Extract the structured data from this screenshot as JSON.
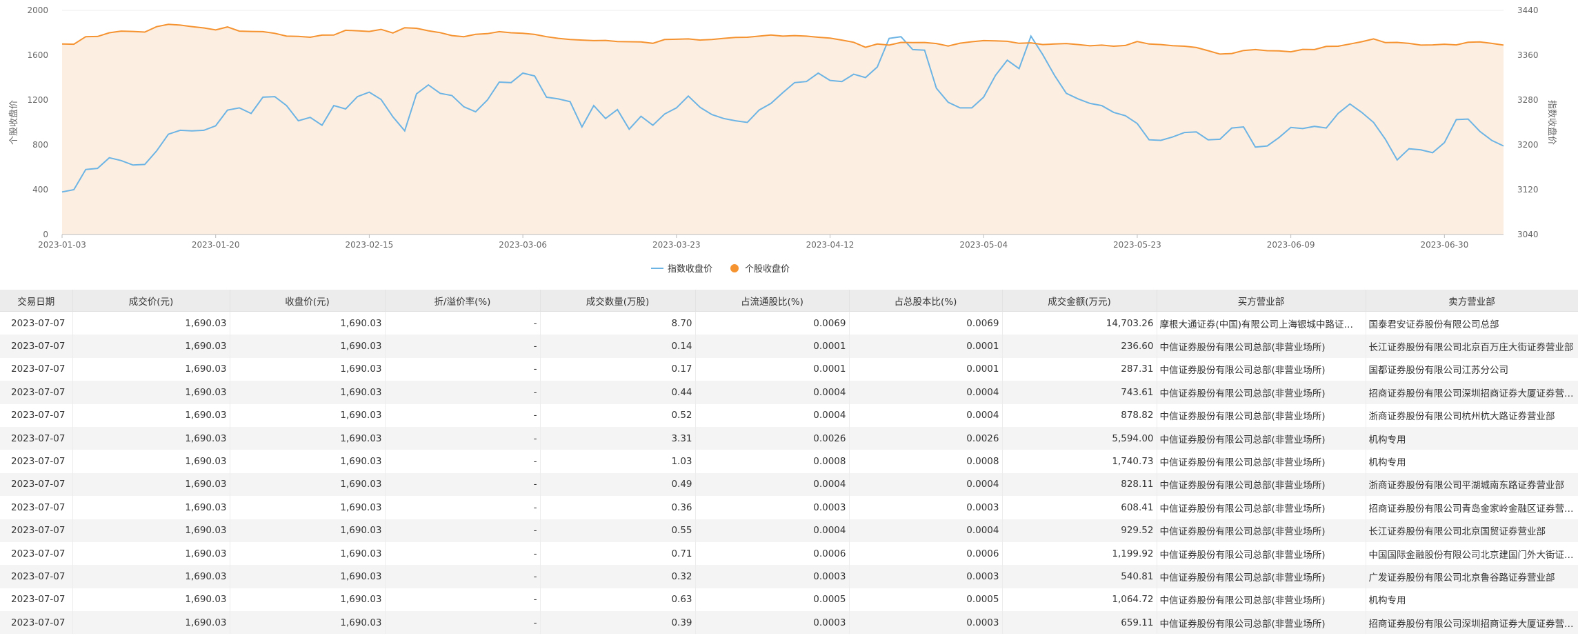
{
  "chart_data": {
    "type": "line",
    "x": [
      "2023-01-03",
      "2023-01-04",
      "2023-01-05",
      "2023-01-06",
      "2023-01-09",
      "2023-01-10",
      "2023-01-11",
      "2023-01-12",
      "2023-01-13",
      "2023-01-16",
      "2023-01-17",
      "2023-01-18",
      "2023-01-19",
      "2023-01-20",
      "2023-01-30",
      "2023-01-31",
      "2023-02-01",
      "2023-02-02",
      "2023-02-03",
      "2023-02-06",
      "2023-02-07",
      "2023-02-08",
      "2023-02-09",
      "2023-02-10",
      "2023-02-13",
      "2023-02-14",
      "2023-02-15",
      "2023-02-16",
      "2023-02-17",
      "2023-02-20",
      "2023-02-21",
      "2023-02-22",
      "2023-02-23",
      "2023-02-24",
      "2023-02-27",
      "2023-02-28",
      "2023-03-01",
      "2023-03-02",
      "2023-03-03",
      "2023-03-06",
      "2023-03-07",
      "2023-03-08",
      "2023-03-09",
      "2023-03-10",
      "2023-03-13",
      "2023-03-14",
      "2023-03-15",
      "2023-03-16",
      "2023-03-17",
      "2023-03-20",
      "2023-03-21",
      "2023-03-22",
      "2023-03-23",
      "2023-03-24",
      "2023-03-27",
      "2023-03-28",
      "2023-03-29",
      "2023-03-30",
      "2023-03-31",
      "2023-04-03",
      "2023-04-04",
      "2023-04-06",
      "2023-04-07",
      "2023-04-10",
      "2023-04-11",
      "2023-04-12",
      "2023-04-13",
      "2023-04-14",
      "2023-04-17",
      "2023-04-18",
      "2023-04-19",
      "2023-04-20",
      "2023-04-21",
      "2023-04-24",
      "2023-04-25",
      "2023-04-26",
      "2023-04-27",
      "2023-04-28",
      "2023-05-04",
      "2023-05-05",
      "2023-05-08",
      "2023-05-09",
      "2023-05-10",
      "2023-05-11",
      "2023-05-12",
      "2023-05-15",
      "2023-05-16",
      "2023-05-17",
      "2023-05-18",
      "2023-05-19",
      "2023-05-22",
      "2023-05-23",
      "2023-05-24",
      "2023-05-25",
      "2023-05-26",
      "2023-05-29",
      "2023-05-30",
      "2023-05-31",
      "2023-06-01",
      "2023-06-02",
      "2023-06-05",
      "2023-06-06",
      "2023-06-07",
      "2023-06-08",
      "2023-06-09",
      "2023-06-12",
      "2023-06-13",
      "2023-06-14",
      "2023-06-15",
      "2023-06-16",
      "2023-06-19",
      "2023-06-20",
      "2023-06-21",
      "2023-06-26",
      "2023-06-27",
      "2023-06-28",
      "2023-06-29",
      "2023-06-30",
      "2023-07-03",
      "2023-07-04",
      "2023-07-05",
      "2023-07-06",
      "2023-07-07"
    ],
    "x_ticks": [
      "2023-01-03",
      "2023-01-20",
      "2023-02-15",
      "2023-03-06",
      "2023-03-23",
      "2023-04-12",
      "2023-05-04",
      "2023-05-23",
      "2023-06-09",
      "2023-06-30"
    ],
    "y_left": {
      "label": "个股收盘价",
      "ticks": [
        "0",
        "400",
        "800",
        "1200",
        "1600",
        "2000"
      ],
      "range": [
        0,
        2000
      ]
    },
    "y_right": {
      "label": "指数收盘价",
      "ticks": [
        "3040",
        "3120",
        "3200",
        "3280",
        "3360",
        "3440"
      ],
      "range": [
        3040,
        3440
      ]
    },
    "series": [
      {
        "name": "指数收盘价",
        "axis": "right",
        "color": "#6cb4e4",
        "values": [
          3116,
          3120,
          3156,
          3158,
          3177,
          3172,
          3164,
          3165,
          3189,
          3219,
          3226,
          3225,
          3226,
          3234,
          3262,
          3266,
          3256,
          3285,
          3286,
          3270,
          3243,
          3249,
          3235,
          3270,
          3264,
          3286,
          3294,
          3281,
          3250,
          3225,
          3291,
          3307,
          3292,
          3288,
          3268,
          3259,
          3280,
          3312,
          3311,
          3328,
          3323,
          3285,
          3282,
          3277,
          3232,
          3270,
          3247,
          3263,
          3228,
          3251,
          3235,
          3255,
          3266,
          3287,
          3267,
          3254,
          3247,
          3243,
          3240,
          3262,
          3274,
          3293,
          3311,
          3313,
          3328,
          3315,
          3313,
          3326,
          3320,
          3339,
          3390,
          3393,
          3370,
          3369,
          3301,
          3276,
          3266,
          3266,
          3285,
          3324,
          3351,
          3336,
          3394,
          3361,
          3324,
          3292,
          3282,
          3274,
          3270,
          3258,
          3252,
          3238,
          3209,
          3208,
          3214,
          3222,
          3223,
          3209,
          3210,
          3230,
          3232,
          3196,
          3198,
          3213,
          3231,
          3229,
          3233,
          3230,
          3256,
          3273,
          3258,
          3240,
          3210,
          3173,
          3193,
          3191,
          3186,
          3204,
          3245,
          3246,
          3224,
          3208,
          3198
        ]
      },
      {
        "name": "个股收盘价",
        "axis": "left",
        "color": "#f59331",
        "values": [
          1700,
          1698,
          1765,
          1767,
          1800,
          1815,
          1812,
          1806,
          1854,
          1875,
          1868,
          1855,
          1843,
          1826,
          1852,
          1815,
          1812,
          1810,
          1795,
          1770,
          1768,
          1760,
          1779,
          1780,
          1822,
          1818,
          1812,
          1830,
          1798,
          1845,
          1840,
          1818,
          1801,
          1775,
          1765,
          1786,
          1792,
          1810,
          1800,
          1795,
          1785,
          1765,
          1750,
          1740,
          1735,
          1730,
          1732,
          1722,
          1720,
          1718,
          1706,
          1740,
          1742,
          1745,
          1735,
          1740,
          1750,
          1758,
          1760,
          1770,
          1780,
          1770,
          1775,
          1770,
          1760,
          1752,
          1735,
          1715,
          1670,
          1700,
          1690,
          1714,
          1712,
          1713,
          1704,
          1682,
          1707,
          1720,
          1730,
          1728,
          1724,
          1706,
          1710,
          1695,
          1700,
          1704,
          1695,
          1684,
          1690,
          1680,
          1687,
          1722,
          1700,
          1695,
          1685,
          1680,
          1668,
          1640,
          1610,
          1615,
          1642,
          1650,
          1640,
          1638,
          1630,
          1652,
          1650,
          1678,
          1680,
          1700,
          1720,
          1745,
          1712,
          1714,
          1705,
          1690,
          1692,
          1698,
          1692,
          1715,
          1718,
          1705,
          1690
        ]
      }
    ],
    "legend": [
      "指数收盘价",
      "个股收盘价"
    ],
    "legend_position": "bottom",
    "grid": true
  },
  "table": {
    "headers": [
      "交易日期",
      "成交价(元)",
      "收盘价(元)",
      "折/溢价率(%)",
      "成交数量(万股)",
      "占流通股比(%)",
      "占总股本比(%)",
      "成交金额(万元)",
      "买方营业部",
      "卖方营业部"
    ],
    "rows": [
      [
        "2023-07-07",
        "1,690.03",
        "1,690.03",
        "-",
        "8.70",
        "0.0069",
        "0.0069",
        "14,703.26",
        "摩根大通证券(中国)有限公司上海银城中路证券营业部",
        "国泰君安证券股份有限公司总部"
      ],
      [
        "2023-07-07",
        "1,690.03",
        "1,690.03",
        "-",
        "0.14",
        "0.0001",
        "0.0001",
        "236.60",
        "中信证券股份有限公司总部(非营业场所)",
        "长江证券股份有限公司北京百万庄大街证券营业部"
      ],
      [
        "2023-07-07",
        "1,690.03",
        "1,690.03",
        "-",
        "0.17",
        "0.0001",
        "0.0001",
        "287.31",
        "中信证券股份有限公司总部(非营业场所)",
        "国都证券股份有限公司江苏分公司"
      ],
      [
        "2023-07-07",
        "1,690.03",
        "1,690.03",
        "-",
        "0.44",
        "0.0004",
        "0.0004",
        "743.61",
        "中信证券股份有限公司总部(非营业场所)",
        "招商证券股份有限公司深圳招商证券大厦证券营业部"
      ],
      [
        "2023-07-07",
        "1,690.03",
        "1,690.03",
        "-",
        "0.52",
        "0.0004",
        "0.0004",
        "878.82",
        "中信证券股份有限公司总部(非营业场所)",
        "浙商证券股份有限公司杭州杭大路证券营业部"
      ],
      [
        "2023-07-07",
        "1,690.03",
        "1,690.03",
        "-",
        "3.31",
        "0.0026",
        "0.0026",
        "5,594.00",
        "中信证券股份有限公司总部(非营业场所)",
        "机构专用"
      ],
      [
        "2023-07-07",
        "1,690.03",
        "1,690.03",
        "-",
        "1.03",
        "0.0008",
        "0.0008",
        "1,740.73",
        "中信证券股份有限公司总部(非营业场所)",
        "机构专用"
      ],
      [
        "2023-07-07",
        "1,690.03",
        "1,690.03",
        "-",
        "0.49",
        "0.0004",
        "0.0004",
        "828.11",
        "中信证券股份有限公司总部(非营业场所)",
        "浙商证券股份有限公司平湖城南东路证券营业部"
      ],
      [
        "2023-07-07",
        "1,690.03",
        "1,690.03",
        "-",
        "0.36",
        "0.0003",
        "0.0003",
        "608.41",
        "中信证券股份有限公司总部(非营业场所)",
        "招商证券股份有限公司青岛金家岭金融区证券营业部"
      ],
      [
        "2023-07-07",
        "1,690.03",
        "1,690.03",
        "-",
        "0.55",
        "0.0004",
        "0.0004",
        "929.52",
        "中信证券股份有限公司总部(非营业场所)",
        "长江证券股份有限公司北京国贸证券营业部"
      ],
      [
        "2023-07-07",
        "1,690.03",
        "1,690.03",
        "-",
        "0.71",
        "0.0006",
        "0.0006",
        "1,199.92",
        "中信证券股份有限公司总部(非营业场所)",
        "中国国际金融股份有限公司北京建国门外大街证券营业部"
      ],
      [
        "2023-07-07",
        "1,690.03",
        "1,690.03",
        "-",
        "0.32",
        "0.0003",
        "0.0003",
        "540.81",
        "中信证券股份有限公司总部(非营业场所)",
        "广发证券股份有限公司北京鲁谷路证券营业部"
      ],
      [
        "2023-07-07",
        "1,690.03",
        "1,690.03",
        "-",
        "0.63",
        "0.0005",
        "0.0005",
        "1,064.72",
        "中信证券股份有限公司总部(非营业场所)",
        "机构专用"
      ],
      [
        "2023-07-07",
        "1,690.03",
        "1,690.03",
        "-",
        "0.39",
        "0.0003",
        "0.0003",
        "659.11",
        "中信证券股份有限公司总部(非营业场所)",
        "招商证券股份有限公司深圳招商证券大厦证券营业部"
      ]
    ]
  },
  "colors": {
    "area_fill": "#fdeee2",
    "grid": "#ececec",
    "axis_text": "#666666"
  }
}
